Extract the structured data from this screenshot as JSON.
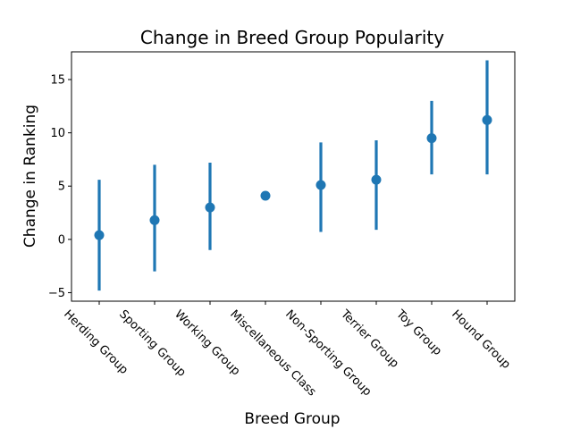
{
  "chart_data": {
    "type": "point",
    "title": "Change in Breed Group Popularity",
    "xlabel": "Breed Group",
    "ylabel": "Change in Ranking",
    "categories": [
      "Herding Group",
      "Sporting Group",
      "Working Group",
      "Miscellaneous Class",
      "Non-Sporting Group",
      "Terrier Group",
      "Toy Group",
      "Hound Group"
    ],
    "values": [
      0.4,
      1.8,
      3.0,
      4.1,
      5.1,
      5.6,
      9.5,
      11.2
    ],
    "ci_low": [
      -4.8,
      -3.0,
      -1.0,
      4.1,
      0.7,
      0.9,
      6.1,
      6.1
    ],
    "ci_high": [
      5.6,
      7.0,
      7.2,
      4.1,
      9.1,
      9.3,
      13.0,
      16.8
    ],
    "ylim": [
      -5.8,
      17.6
    ],
    "yticks": [
      -5,
      0,
      5,
      10,
      15
    ],
    "ytick_labels": [
      "−5",
      "0",
      "5",
      "10",
      "15"
    ],
    "grid": false,
    "color": "#1f77b4"
  }
}
